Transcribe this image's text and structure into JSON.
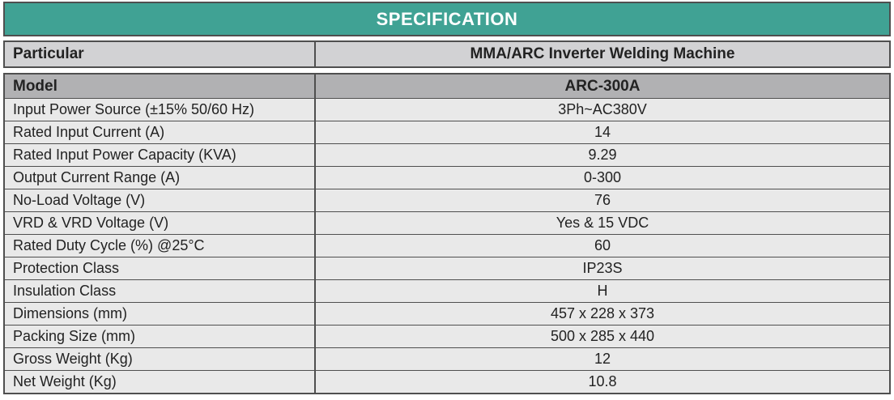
{
  "title": "SPECIFICATION",
  "colors": {
    "header_bg": "#40A294",
    "header_text": "#FFFFFF",
    "particular_row_bg": "#D2D2D4",
    "model_row_bg": "#B1B1B3",
    "data_row_bg": "#E9E9E9",
    "border": "#4F4F4F",
    "text": "#222222"
  },
  "table": {
    "particular": {
      "label": "Particular",
      "value": "MMA/ARC Inverter Welding Machine"
    },
    "model": {
      "label": "Model",
      "value": "ARC-300A"
    },
    "rows": [
      {
        "label": "Input Power Source (±15% 50/60 Hz)",
        "value": "3Ph~AC380V"
      },
      {
        "label": "Rated Input Current (A)",
        "value": "14"
      },
      {
        "label": "Rated Input Power Capacity (KVA)",
        "value": "9.29"
      },
      {
        "label": "Output Current Range (A)",
        "value": "0-300"
      },
      {
        "label": "No-Load Voltage (V)",
        "value": "76"
      },
      {
        "label": "VRD & VRD Voltage (V)",
        "value": "Yes & 15 VDC"
      },
      {
        "label": "Rated Duty Cycle (%) @25°C",
        "value": "60"
      },
      {
        "label": "Protection Class",
        "value": "IP23S"
      },
      {
        "label": "Insulation Class",
        "value": "H"
      },
      {
        "label": "Dimensions (mm)",
        "value": "457 x 228 x 373"
      },
      {
        "label": "Packing Size (mm)",
        "value": "500 x 285 x 440"
      },
      {
        "label": "Gross Weight (Kg)",
        "value": "12"
      },
      {
        "label": "Net Weight (Kg)",
        "value": "10.8"
      }
    ]
  }
}
